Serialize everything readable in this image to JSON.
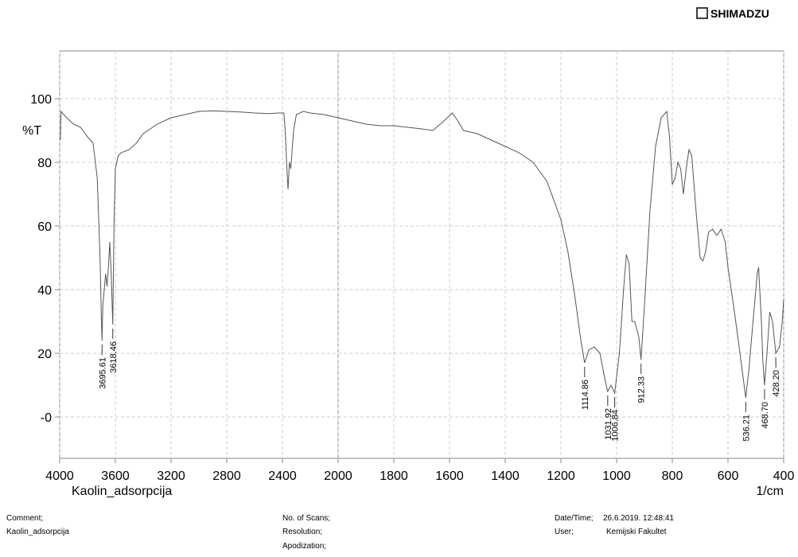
{
  "header": {
    "brand": "SHIMADZU"
  },
  "chart_data": {
    "type": "line",
    "y_label": "%T",
    "x_label": "1/cm",
    "sample": "Kaolin_adsorpcija",
    "x": [
      3995,
      3990,
      3950,
      3900,
      3850,
      3800,
      3760,
      3730,
      3710,
      3700,
      3695.61,
      3690,
      3680,
      3670,
      3660,
      3650,
      3640,
      3630,
      3618.46,
      3610,
      3600,
      3580,
      3560,
      3500,
      3450,
      3400,
      3300,
      3200,
      3100,
      3000,
      2900,
      2800,
      2700,
      2600,
      2500,
      2420,
      2390,
      2380,
      2370,
      2360,
      2350,
      2340,
      2320,
      2300,
      2250,
      2200,
      2100,
      2000,
      1950,
      1900,
      1850,
      1800,
      1750,
      1700,
      1660,
      1620,
      1590,
      1570,
      1550,
      1500,
      1450,
      1400,
      1350,
      1300,
      1250,
      1200,
      1175,
      1150,
      1130,
      1114.86,
      1100,
      1080,
      1060,
      1040,
      1031.92,
      1020,
      1006.84,
      990,
      975,
      965,
      955,
      945,
      935,
      920,
      912.33,
      900,
      880,
      860,
      840,
      820,
      810,
      800,
      790,
      780,
      770,
      760,
      750,
      740,
      730,
      715,
      700,
      690,
      680,
      670,
      655,
      640,
      625,
      610,
      600,
      580,
      560,
      545,
      536.21,
      525,
      510,
      495,
      490,
      480,
      475,
      468.7,
      460,
      450,
      440,
      428.2,
      415,
      405,
      400
    ],
    "series": [
      {
        "name": "Kaolin_adsorpcija",
        "color": "#555555",
        "values": [
          87,
          96,
          94,
          92,
          91,
          88,
          86,
          75,
          50,
          30,
          24,
          35,
          40,
          45,
          41,
          47,
          55,
          45,
          29,
          60,
          78,
          82,
          83,
          84,
          86,
          89,
          92,
          94,
          95,
          96,
          96.2,
          96,
          95.8,
          95.5,
          95.3,
          95.5,
          95.5,
          90,
          80,
          71.5,
          80,
          78,
          90,
          95,
          96,
          95.5,
          95,
          94,
          93,
          92,
          91.5,
          91.5,
          91,
          90.5,
          90,
          93,
          95.5,
          93,
          90,
          89,
          87,
          85,
          83,
          80,
          74,
          62,
          52,
          38,
          25,
          17,
          21,
          22,
          20,
          11,
          8,
          10,
          7.5,
          20,
          40,
          51,
          48,
          30,
          30,
          25,
          18,
          35,
          65,
          85,
          94,
          96,
          88,
          73,
          75,
          80,
          78,
          70,
          78,
          84,
          82,
          65,
          50,
          49,
          52,
          58,
          59,
          57,
          59,
          55,
          47,
          35,
          22,
          12,
          6,
          15,
          30,
          45,
          47,
          30,
          18,
          10,
          20,
          33,
          30,
          20,
          22,
          30,
          37
        ]
      }
    ],
    "peaks": {
      "x": [
        3695.61,
        3618.46,
        1114.86,
        1031.92,
        1006.84,
        912.33,
        536.21,
        468.7,
        428.2
      ],
      "y": [
        24,
        29,
        17,
        8,
        7.5,
        18,
        6,
        10,
        20
      ],
      "value_labels": [
        "3695.61",
        "3618.46",
        "1114.86",
        "1031.92",
        "1006.84",
        "912.33",
        "536.21",
        "468.70",
        "428.20"
      ]
    },
    "xlim": [
      4000,
      400
    ],
    "scale_break": 2000,
    "xticks": [
      4000,
      3600,
      3200,
      2800,
      2400,
      2000,
      1800,
      1600,
      1400,
      1200,
      1000,
      800,
      600,
      400
    ],
    "ylim": [
      -13,
      115
    ],
    "yticks": [
      100,
      80,
      60,
      40,
      20,
      {
        "value": 0,
        "label": "-0"
      }
    ],
    "grid": true
  },
  "footer": {
    "comment_label": "Comment;",
    "comment": "Kaolin_adsorpcija",
    "scans": "No. of Scans;",
    "resolution": "Resolution;",
    "apodization": "Apodization;",
    "date_label": "Date/Time;",
    "date": "26.6.2019. 12:48:41",
    "user_label": "User;",
    "user": "Kemijski Fakultet"
  }
}
